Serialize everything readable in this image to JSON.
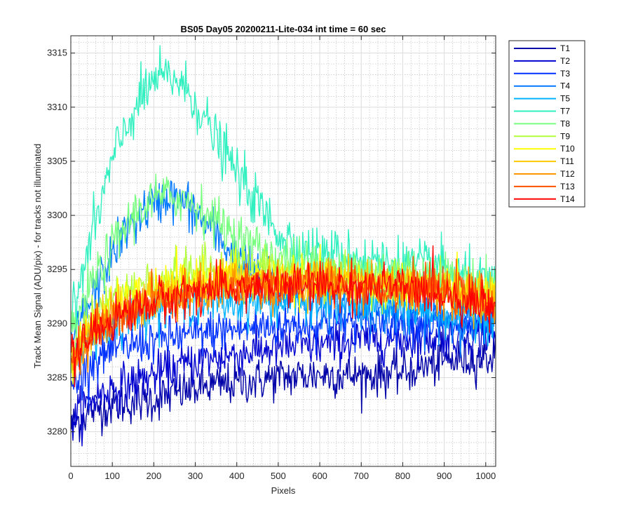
{
  "chart_data": {
    "type": "line",
    "title": "BS05 Day05 20200211-Lite-034 int time = 60 sec",
    "xlabel": "Pixels",
    "ylabel": "Track Mean Signal (ADU/pix) - for tracks not illuminated",
    "xlim": [
      0,
      1024
    ],
    "ylim": [
      3276.8,
      3316.6
    ],
    "xticks": [
      0,
      100,
      200,
      300,
      400,
      500,
      600,
      700,
      800,
      900,
      1000
    ],
    "yticks": [
      3280,
      3285,
      3290,
      3295,
      3300,
      3305,
      3310,
      3315
    ],
    "grid": true,
    "minor_grid": true,
    "legend_position": "outside-top-right",
    "series": [
      {
        "name": "T1",
        "color": "#0000a8",
        "noise": 1.0,
        "profile": [
          [
            0,
            3280.5
          ],
          [
            50,
            3282
          ],
          [
            100,
            3282.5
          ],
          [
            200,
            3283
          ],
          [
            300,
            3284
          ],
          [
            400,
            3284.5
          ],
          [
            500,
            3285
          ],
          [
            600,
            3285.3
          ],
          [
            700,
            3285.2
          ],
          [
            800,
            3285.5
          ],
          [
            900,
            3286.5
          ],
          [
            1024,
            3287
          ]
        ]
      },
      {
        "name": "T2",
        "color": "#0000d0",
        "noise": 1.0,
        "profile": [
          [
            0,
            3281
          ],
          [
            50,
            3283
          ],
          [
            100,
            3284
          ],
          [
            200,
            3285.2
          ],
          [
            300,
            3286.5
          ],
          [
            400,
            3287.2
          ],
          [
            500,
            3287.8
          ],
          [
            600,
            3288
          ],
          [
            700,
            3288.5
          ],
          [
            800,
            3288.5
          ],
          [
            900,
            3288.8
          ],
          [
            1024,
            3289
          ]
        ]
      },
      {
        "name": "T3",
        "color": "#0032ff",
        "noise": 1.0,
        "profile": [
          [
            0,
            3284
          ],
          [
            50,
            3286.5
          ],
          [
            100,
            3287.5
          ],
          [
            200,
            3288.5
          ],
          [
            300,
            3289
          ],
          [
            400,
            3289.5
          ],
          [
            500,
            3289.8
          ],
          [
            600,
            3290
          ],
          [
            700,
            3290.3
          ],
          [
            800,
            3290.3
          ],
          [
            900,
            3290
          ],
          [
            1024,
            3290
          ]
        ]
      },
      {
        "name": "T4",
        "color": "#0078ff",
        "noise": 1.1,
        "profile": [
          [
            0,
            3288
          ],
          [
            60,
            3293
          ],
          [
            120,
            3298
          ],
          [
            180,
            3300.5
          ],
          [
            230,
            3301.8
          ],
          [
            280,
            3301
          ],
          [
            330,
            3299
          ],
          [
            400,
            3296
          ],
          [
            450,
            3294.5
          ],
          [
            500,
            3293
          ],
          [
            600,
            3292
          ],
          [
            700,
            3291.5
          ],
          [
            800,
            3291
          ],
          [
            900,
            3290.5
          ],
          [
            1024,
            3290
          ]
        ]
      },
      {
        "name": "T5",
        "color": "#00b4ff",
        "noise": 1.0,
        "profile": [
          [
            0,
            3287
          ],
          [
            100,
            3290
          ],
          [
            200,
            3291.5
          ],
          [
            300,
            3292
          ],
          [
            400,
            3292
          ],
          [
            500,
            3292
          ],
          [
            600,
            3292
          ],
          [
            700,
            3292
          ],
          [
            800,
            3291.5
          ],
          [
            900,
            3291
          ],
          [
            1024,
            3290.5
          ]
        ]
      },
      {
        "name": "T7",
        "color": "#30f0c0",
        "noise": 1.2,
        "profile": [
          [
            0,
            3290
          ],
          [
            50,
            3298
          ],
          [
            100,
            3305
          ],
          [
            150,
            3309.5
          ],
          [
            200,
            3312.5
          ],
          [
            250,
            3312.8
          ],
          [
            300,
            3310.5
          ],
          [
            350,
            3307
          ],
          [
            400,
            3304
          ],
          [
            450,
            3301
          ],
          [
            500,
            3298.5
          ],
          [
            550,
            3297
          ],
          [
            600,
            3296.5
          ],
          [
            700,
            3296
          ],
          [
            800,
            3295.5
          ],
          [
            900,
            3295
          ],
          [
            1024,
            3293
          ]
        ]
      },
      {
        "name": "T8",
        "color": "#78ff80",
        "noise": 1.1,
        "profile": [
          [
            0,
            3289
          ],
          [
            50,
            3293.5
          ],
          [
            100,
            3297
          ],
          [
            150,
            3300
          ],
          [
            200,
            3301.5
          ],
          [
            250,
            3301.8
          ],
          [
            300,
            3301
          ],
          [
            350,
            3299.5
          ],
          [
            400,
            3298
          ],
          [
            450,
            3297
          ],
          [
            500,
            3296
          ],
          [
            600,
            3295.5
          ],
          [
            700,
            3295
          ],
          [
            800,
            3294.8
          ],
          [
            900,
            3294.5
          ],
          [
            1024,
            3293
          ]
        ]
      },
      {
        "name": "T9",
        "color": "#b4ff3c",
        "noise": 1.0,
        "profile": [
          [
            0,
            3287
          ],
          [
            50,
            3290.5
          ],
          [
            100,
            3292.5
          ],
          [
            200,
            3294
          ],
          [
            300,
            3295
          ],
          [
            400,
            3295.3
          ],
          [
            500,
            3295
          ],
          [
            600,
            3294.5
          ],
          [
            700,
            3294
          ],
          [
            800,
            3293.8
          ],
          [
            900,
            3293.5
          ],
          [
            1024,
            3292.5
          ]
        ]
      },
      {
        "name": "T10",
        "color": "#ffff00",
        "noise": 1.0,
        "profile": [
          [
            0,
            3286.5
          ],
          [
            50,
            3290
          ],
          [
            100,
            3291.5
          ],
          [
            200,
            3293
          ],
          [
            300,
            3294
          ],
          [
            400,
            3294.2
          ],
          [
            500,
            3294
          ],
          [
            600,
            3294
          ],
          [
            700,
            3293.8
          ],
          [
            800,
            3293.5
          ],
          [
            900,
            3293.2
          ],
          [
            1024,
            3292.5
          ]
        ]
      },
      {
        "name": "T11",
        "color": "#ffc800",
        "noise": 1.0,
        "profile": [
          [
            0,
            3286
          ],
          [
            50,
            3289.5
          ],
          [
            100,
            3291
          ],
          [
            200,
            3292.5
          ],
          [
            300,
            3293.5
          ],
          [
            400,
            3294
          ],
          [
            500,
            3294
          ],
          [
            600,
            3294
          ],
          [
            700,
            3293.8
          ],
          [
            800,
            3293.5
          ],
          [
            900,
            3293
          ],
          [
            1024,
            3292.2
          ]
        ]
      },
      {
        "name": "T12",
        "color": "#ff9600",
        "noise": 1.0,
        "profile": [
          [
            0,
            3286
          ],
          [
            50,
            3289
          ],
          [
            100,
            3290.5
          ],
          [
            200,
            3292
          ],
          [
            300,
            3293
          ],
          [
            400,
            3293.5
          ],
          [
            500,
            3293.8
          ],
          [
            600,
            3293.8
          ],
          [
            700,
            3293.6
          ],
          [
            800,
            3293.3
          ],
          [
            900,
            3293
          ],
          [
            1024,
            3292
          ]
        ]
      },
      {
        "name": "T13",
        "color": "#ff5000",
        "noise": 1.0,
        "profile": [
          [
            0,
            3286
          ],
          [
            50,
            3289
          ],
          [
            100,
            3290.3
          ],
          [
            200,
            3291.8
          ],
          [
            300,
            3292.8
          ],
          [
            400,
            3293.2
          ],
          [
            500,
            3293.5
          ],
          [
            600,
            3293.5
          ],
          [
            700,
            3293.5
          ],
          [
            800,
            3293.3
          ],
          [
            900,
            3293
          ],
          [
            1024,
            3292
          ]
        ]
      },
      {
        "name": "T14",
        "color": "#ff0000",
        "noise": 1.0,
        "profile": [
          [
            0,
            3286.5
          ],
          [
            50,
            3289
          ],
          [
            100,
            3290.5
          ],
          [
            200,
            3292
          ],
          [
            300,
            3293
          ],
          [
            400,
            3293.3
          ],
          [
            500,
            3293.5
          ],
          [
            600,
            3293.5
          ],
          [
            700,
            3293.5
          ],
          [
            800,
            3293.2
          ],
          [
            900,
            3292.8
          ],
          [
            1024,
            3291.5
          ]
        ]
      }
    ]
  }
}
